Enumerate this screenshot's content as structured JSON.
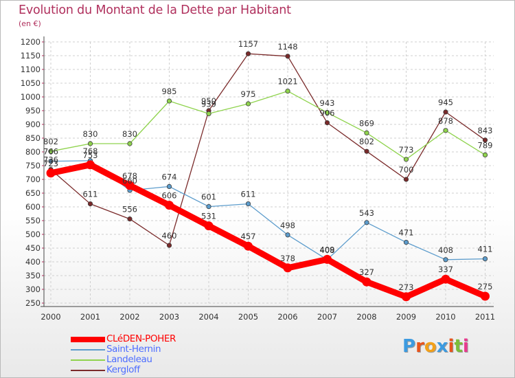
{
  "header": {
    "title": "Evolution du Montant de la Dette par Habitant",
    "subtitle": "(en €)"
  },
  "colors": {
    "title": "#b0305d",
    "grid": "#cfcfcf",
    "axis_text": "#333333",
    "label_text": "#333333"
  },
  "chart_data": {
    "type": "line",
    "title": "Evolution du Montant de la Dette par Habitant",
    "subtitle": "(en €)",
    "xlabel": "",
    "ylabel": "",
    "x": [
      "2000",
      "2001",
      "2002",
      "2003",
      "2004",
      "2005",
      "2006",
      "2007",
      "2008",
      "2009",
      "2010",
      "2011"
    ],
    "ylim": [
      250,
      1200
    ],
    "yticks": [
      250,
      300,
      350,
      400,
      450,
      500,
      550,
      600,
      650,
      700,
      750,
      800,
      850,
      900,
      950,
      1000,
      1050,
      1100,
      1150,
      1200
    ],
    "grid": true,
    "legend_position": "bottom-left",
    "series": [
      {
        "name": "CLéDEN-POHER",
        "color": "#ff0000",
        "legend_color": "#ff0000",
        "label_color": "#4d4dff",
        "highlight": true,
        "values": [
          723,
          753,
          678,
          606,
          531,
          457,
          378,
          409,
          327,
          273,
          337,
          275
        ],
        "labels": [
          "723",
          "753",
          "678",
          "606",
          "531",
          "457",
          "378",
          "409",
          "327",
          "273",
          "337",
          "275"
        ]
      },
      {
        "name": "Saint-Hernin",
        "color": "#5c9ccc",
        "legend_color": "#4d6dff",
        "highlight": false,
        "values": [
          766,
          768,
          660,
          674,
          601,
          611,
          498,
          408,
          543,
          471,
          408,
          411
        ],
        "labels": [
          "766",
          "768",
          "660",
          "674",
          "601",
          "611",
          "498",
          "408",
          "543",
          "471",
          "408",
          "411"
        ]
      },
      {
        "name": "Landeleau",
        "color": "#8fd34d",
        "legend_color": "#4d6dff",
        "highlight": false,
        "values": [
          802,
          830,
          830,
          985,
          939,
          975,
          1021,
          943,
          869,
          773,
          878,
          789
        ],
        "labels": [
          "802",
          "830",
          "830",
          "985",
          "939",
          "975",
          "1021",
          "943",
          "869",
          "773",
          "878",
          "789"
        ]
      },
      {
        "name": "Kergloff",
        "color": "#7a2a2a",
        "legend_color": "#4d6dff",
        "highlight": false,
        "values": [
          736,
          611,
          556,
          460,
          950,
          1157,
          1148,
          906,
          802,
          700,
          945,
          843
        ],
        "labels": [
          "736",
          "611",
          "556",
          "460",
          "950",
          "1157",
          "1148",
          "906",
          "802",
          "700",
          "945",
          "843"
        ]
      }
    ]
  },
  "logo": {
    "text_letters": [
      "P",
      "r",
      "o",
      "x",
      "i",
      "t",
      "i"
    ],
    "letter_colors": [
      "#3d9be0",
      "#e8541c",
      "#f2a01a",
      "#3d9be0",
      "#e8541c",
      "#7bbd3a",
      "#e83a8e"
    ]
  }
}
